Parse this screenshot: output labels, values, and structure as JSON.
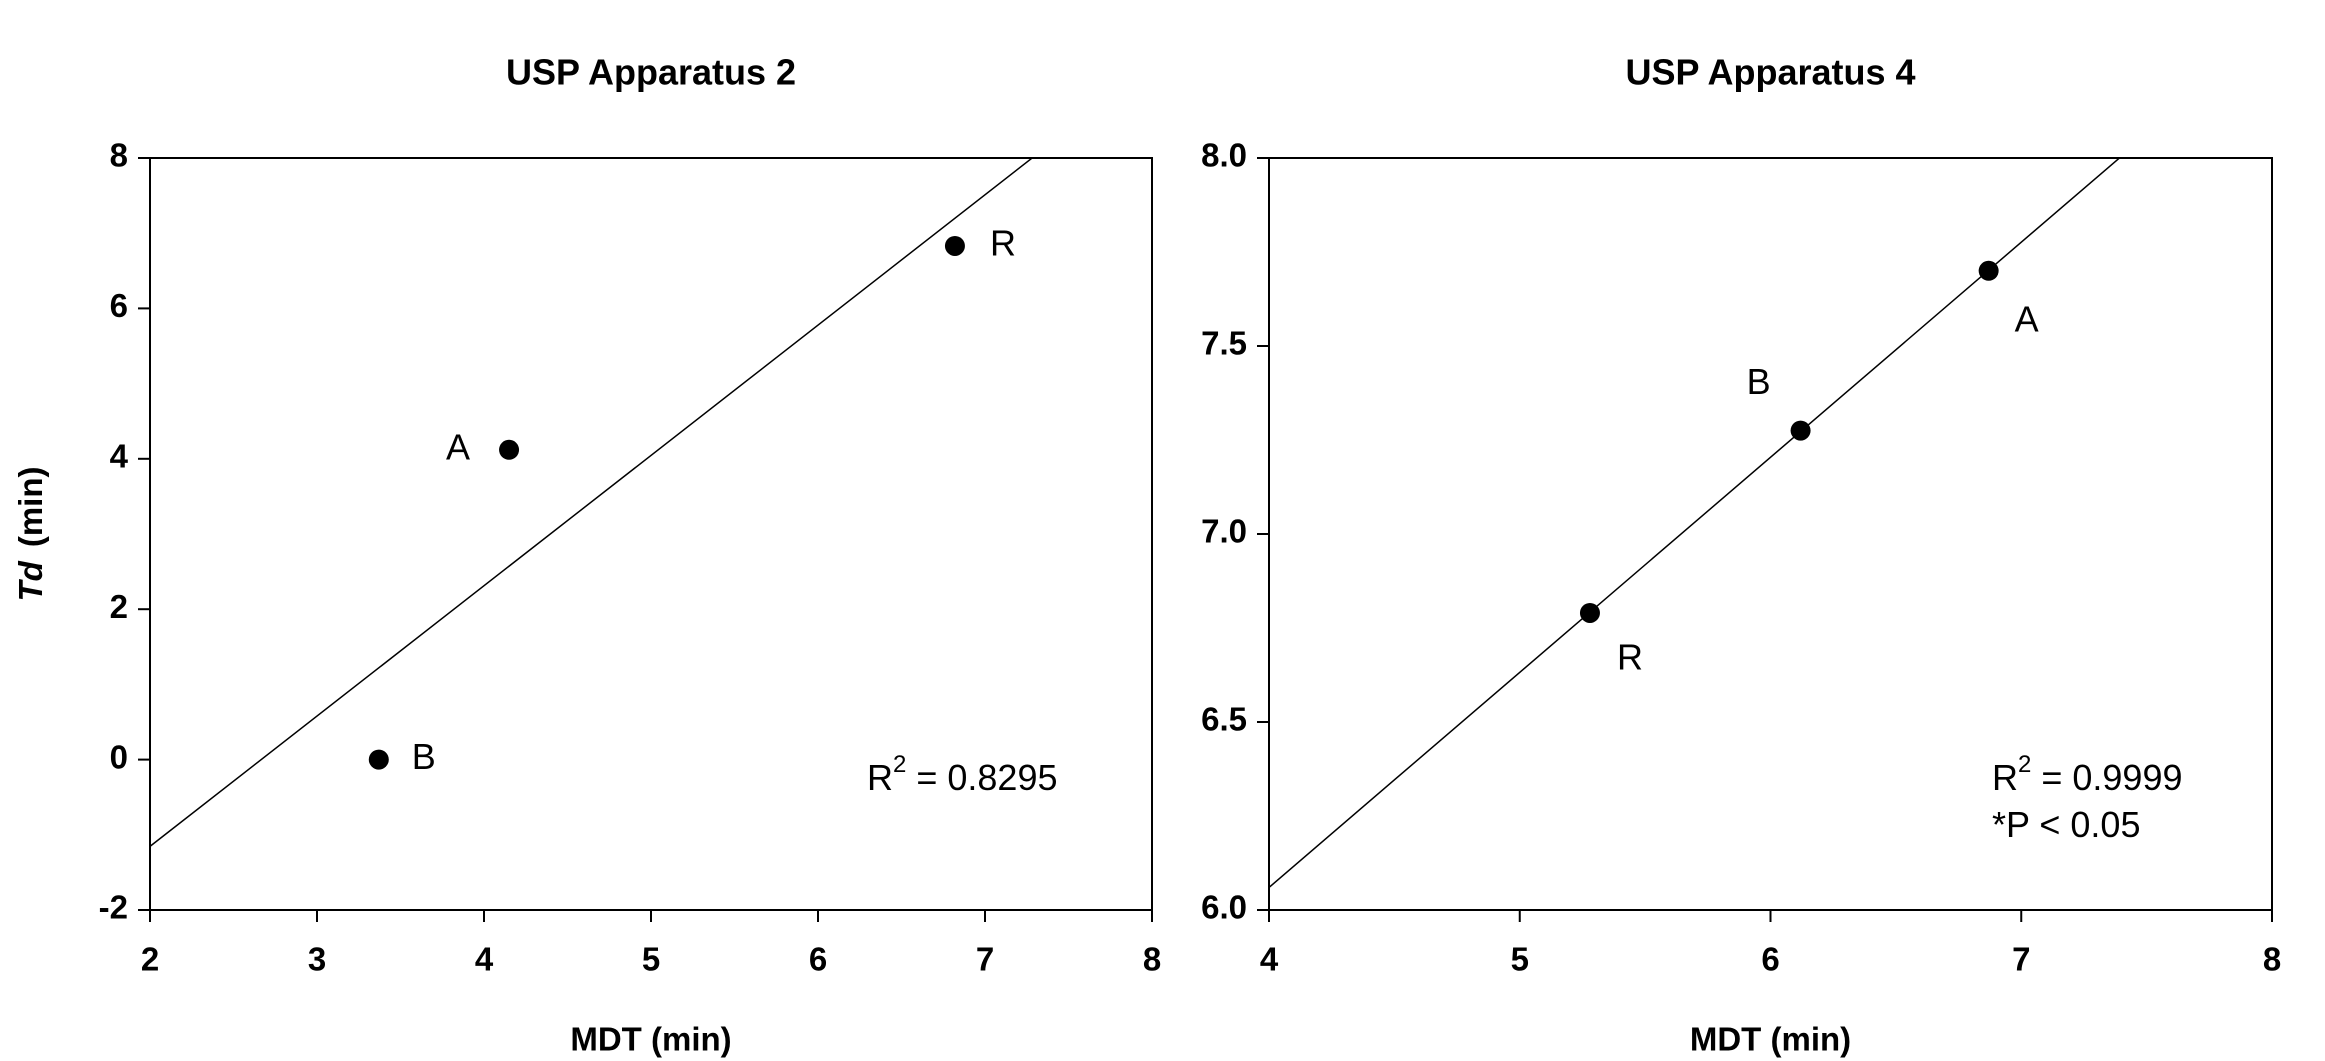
{
  "chart_data": [
    {
      "type": "scatter",
      "title": "USP Apparatus 2",
      "xlabel": "MDT  (min)",
      "ylabel_italic": "Td",
      "ylabel": "(min)",
      "x": [
        3.37,
        4.15,
        6.82
      ],
      "y": [
        0,
        4.12,
        6.83
      ],
      "labels": [
        "B",
        "A",
        "R"
      ],
      "color": "#000000",
      "fit": {
        "slope": 1.733,
        "intercept": -4.62
      },
      "xlim": [
        2,
        8
      ],
      "ylim": [
        -2,
        8
      ],
      "xticks": [
        2,
        3,
        4,
        5,
        6,
        7,
        8
      ],
      "yticks": [
        -2,
        0,
        2,
        4,
        6,
        8
      ],
      "annotations": [
        {
          "base": "R",
          "superscript": "2",
          "text": " = 0.8295"
        }
      ]
    },
    {
      "type": "scatter",
      "title": "USP Apparatus 4",
      "xlabel": "MDT (min)",
      "x": [
        5.28,
        6.12,
        6.87
      ],
      "y": [
        6.79,
        7.275,
        7.7
      ],
      "labels": [
        "R",
        "B",
        "A"
      ],
      "color": "#000000",
      "fit": {
        "slope": 0.572,
        "intercept": 3.772
      },
      "xlim": [
        4,
        8
      ],
      "ylim": [
        6,
        8
      ],
      "xticks": [
        4,
        5,
        6,
        7,
        8
      ],
      "yticks": [
        {
          "value": 6,
          "label": "6.0"
        },
        {
          "value": 6.5,
          "label": "6.5"
        },
        {
          "value": 7,
          "label": "7.0"
        },
        {
          "value": 7.5,
          "label": "7.5"
        },
        {
          "value": 8,
          "label": "8.0"
        }
      ],
      "annotations": [
        {
          "base": "R",
          "superscript": "2",
          "text": " = 0.9999"
        },
        {
          "text": "*P < 0.05"
        }
      ]
    }
  ]
}
